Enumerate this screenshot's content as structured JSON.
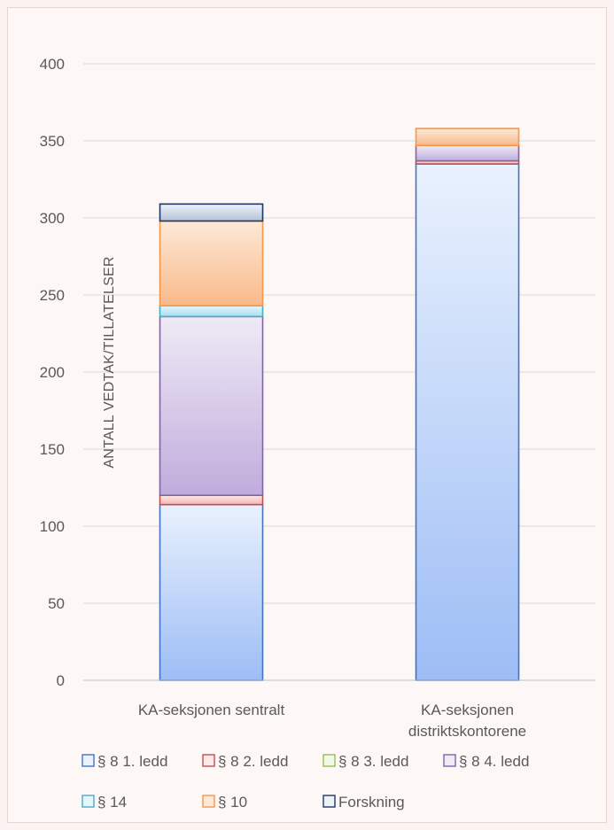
{
  "chart_data": {
    "type": "bar",
    "stacked": true,
    "title": "",
    "xlabel": "",
    "ylabel": "ANTALL VEDTAK/TILLATELSER",
    "ylim": [
      0,
      400
    ],
    "yticks": [
      0,
      50,
      100,
      150,
      200,
      250,
      300,
      350,
      400
    ],
    "grid": true,
    "legend_position": "bottom",
    "categories": [
      [
        "KA-seksjonen sentralt"
      ],
      [
        "KA-seksjonen",
        "distriktskontorene"
      ]
    ],
    "series": [
      {
        "name": "§ 8  1. ledd",
        "values": [
          114,
          335
        ],
        "stroke": "#4472c4",
        "fill_top": "#e9f1fd",
        "fill_bottom": "#9dbdf5"
      },
      {
        "name": "§ 8  2. ledd",
        "values": [
          6,
          2
        ],
        "stroke": "#c0504d",
        "fill_top": "#fde9e8",
        "fill_bottom": "#f4b5b3"
      },
      {
        "name": "§ 8  3. ledd",
        "values": [
          0,
          0
        ],
        "stroke": "#9bbb59",
        "fill_top": "#f1f8e6",
        "fill_bottom": "#cfe6a8"
      },
      {
        "name": "§ 8  4. ledd",
        "values": [
          116,
          10
        ],
        "stroke": "#8064a2",
        "fill_top": "#efeaf6",
        "fill_bottom": "#c0acdc"
      },
      {
        "name": "§ 14",
        "values": [
          7,
          0
        ],
        "stroke": "#4bacc6",
        "fill_top": "#e6f7fb",
        "fill_bottom": "#a6def0"
      },
      {
        "name": "§ 10",
        "values": [
          55,
          11
        ],
        "stroke": "#f79646",
        "fill_top": "#fde9d7",
        "fill_bottom": "#f9b98a"
      },
      {
        "name": "Forskning",
        "values": [
          11,
          0
        ],
        "stroke": "#1f3864",
        "fill_top": "#eef2f8",
        "fill_bottom": "#b4c2d8"
      }
    ]
  }
}
